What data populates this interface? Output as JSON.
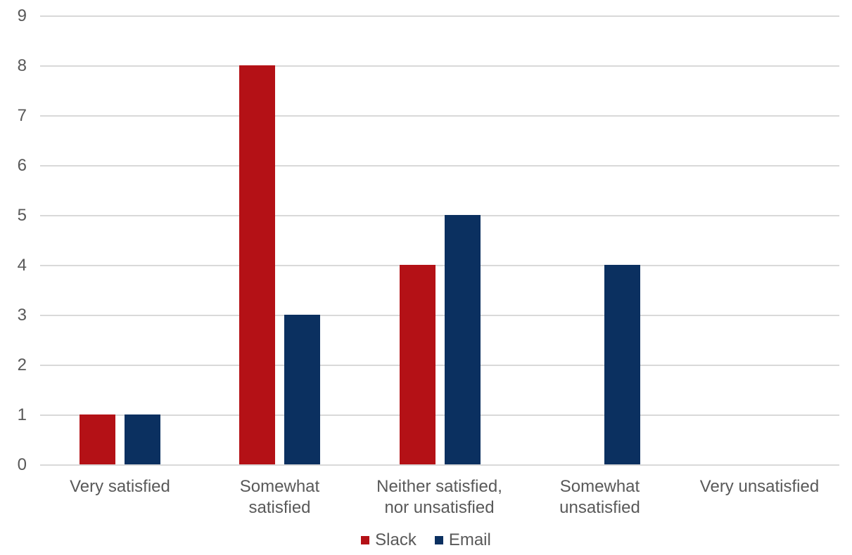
{
  "chart_data": {
    "type": "bar",
    "categories": [
      "Very satisfied",
      "Somewhat\nsatisfied",
      "Neither satisfied,\nnor unsatisfied",
      "Somewhat\nunsatisfied",
      "Very unsatisfied"
    ],
    "series": [
      {
        "name": "Slack",
        "color": "#B41116",
        "values": [
          1,
          8,
          4,
          0,
          0
        ]
      },
      {
        "name": "Email",
        "color": "#0B3060",
        "values": [
          1,
          3,
          5,
          4,
          0
        ]
      }
    ],
    "yticks": [
      0,
      1,
      2,
      3,
      4,
      5,
      6,
      7,
      8,
      9
    ],
    "ylim": [
      0,
      9
    ],
    "grid": "horizontal",
    "legend_position": "bottom"
  },
  "colors": {
    "background": "#FFFFFF",
    "gridline": "#D9D9D9",
    "axis_text": "#595959",
    "slack_red": "#B41116",
    "email_navy": "#0B3060"
  }
}
